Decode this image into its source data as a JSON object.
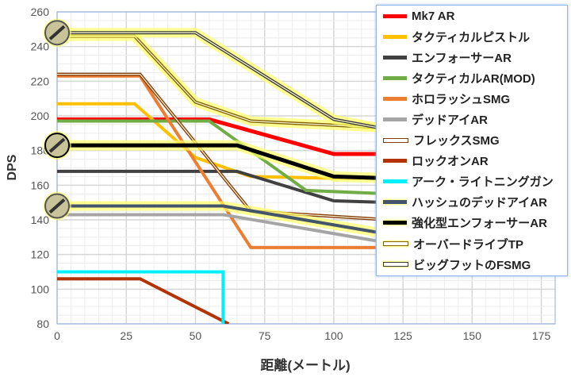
{
  "chart_data": {
    "type": "line",
    "title": "",
    "xlabel": "距離(メートル)",
    "ylabel": "DPS",
    "xlim": [
      0,
      180
    ],
    "ylim": [
      80,
      260
    ],
    "xticks": [
      0,
      25,
      50,
      75,
      100,
      125,
      150,
      175
    ],
    "yticks": [
      80,
      100,
      120,
      140,
      160,
      180,
      200,
      220,
      240,
      260
    ],
    "grid": true,
    "legend_position": "top-right",
    "series": [
      {
        "name": "Mk7 AR",
        "color": "#ff0000",
        "width": 5,
        "points": [
          [
            0,
            198
          ],
          [
            55,
            198
          ],
          [
            100,
            178
          ],
          [
            120,
            178
          ]
        ]
      },
      {
        "name": "タクティカルピストル",
        "color": "#ffc000",
        "width": 4,
        "points": [
          [
            0,
            207
          ],
          [
            28,
            207
          ],
          [
            50,
            176
          ],
          [
            70,
            165
          ],
          [
            100,
            164
          ],
          [
            120,
            164
          ]
        ]
      },
      {
        "name": "エンフォーサーAR",
        "color": "#404040",
        "width": 4,
        "points": [
          [
            0,
            168
          ],
          [
            65,
            168
          ],
          [
            100,
            151
          ],
          [
            120,
            150
          ]
        ]
      },
      {
        "name": "タクティカルAR(MOD)",
        "color": "#70ad47",
        "width": 4,
        "points": [
          [
            0,
            197
          ],
          [
            55,
            197
          ],
          [
            90,
            157
          ],
          [
            120,
            155
          ]
        ]
      },
      {
        "name": "ホロラッシュSMG",
        "color": "#ed7d31",
        "width": 4,
        "points": [
          [
            0,
            223
          ],
          [
            30,
            223
          ],
          [
            70,
            124
          ],
          [
            120,
            124
          ]
        ]
      },
      {
        "name": "デッドアイAR",
        "color": "#a5a5a5",
        "width": 4,
        "points": [
          [
            0,
            143
          ],
          [
            60,
            143
          ],
          [
            115,
            128
          ],
          [
            120,
            128
          ]
        ]
      },
      {
        "name": "フレックスSMG",
        "color": "#843c0c",
        "width": 4,
        "double": true,
        "points": [
          [
            0,
            224
          ],
          [
            30,
            224
          ],
          [
            70,
            145
          ],
          [
            120,
            140
          ]
        ]
      },
      {
        "name": "ロックオンAR",
        "color": "#b33300",
        "width": 4,
        "points": [
          [
            0,
            106
          ],
          [
            30,
            106
          ],
          [
            62,
            80
          ]
        ]
      },
      {
        "name": "アーク・ライトニングガン",
        "color": "#00f0ff",
        "width": 4,
        "points": [
          [
            0,
            110
          ],
          [
            60,
            110
          ],
          [
            60,
            80
          ]
        ]
      },
      {
        "name": "ハッシュのデッドアイAR",
        "color": "#44546a",
        "width": 4,
        "glow": true,
        "points": [
          [
            0,
            148
          ],
          [
            60,
            148
          ],
          [
            115,
            133
          ],
          [
            120,
            133
          ]
        ]
      },
      {
        "name": "強化型エンフォーサーAR",
        "color": "#000000",
        "width": 5,
        "glow": true,
        "points": [
          [
            0,
            183
          ],
          [
            65,
            183
          ],
          [
            100,
            165
          ],
          [
            120,
            164
          ]
        ]
      },
      {
        "name": "オーバードライブTP",
        "color": "#7f6000",
        "width": 4,
        "double": true,
        "glow": true,
        "points": [
          [
            0,
            246
          ],
          [
            28,
            246
          ],
          [
            50,
            208
          ],
          [
            70,
            197
          ],
          [
            120,
            193
          ]
        ]
      },
      {
        "name": "ビッグフットのFSMG",
        "color": "#3a3a3a",
        "width": 4,
        "double": true,
        "glow": true,
        "points": [
          [
            0,
            248
          ],
          [
            50,
            248
          ],
          [
            100,
            198
          ],
          [
            120,
            192
          ]
        ]
      }
    ],
    "markers": [
      {
        "series": "ビッグフットのFSMG",
        "icon": "smg-icon"
      },
      {
        "series": "強化型エンフォーサーAR",
        "icon": "rifle-icon"
      },
      {
        "series": "ハッシュのデッドアイAR",
        "icon": "camo-rifle-icon"
      }
    ]
  }
}
